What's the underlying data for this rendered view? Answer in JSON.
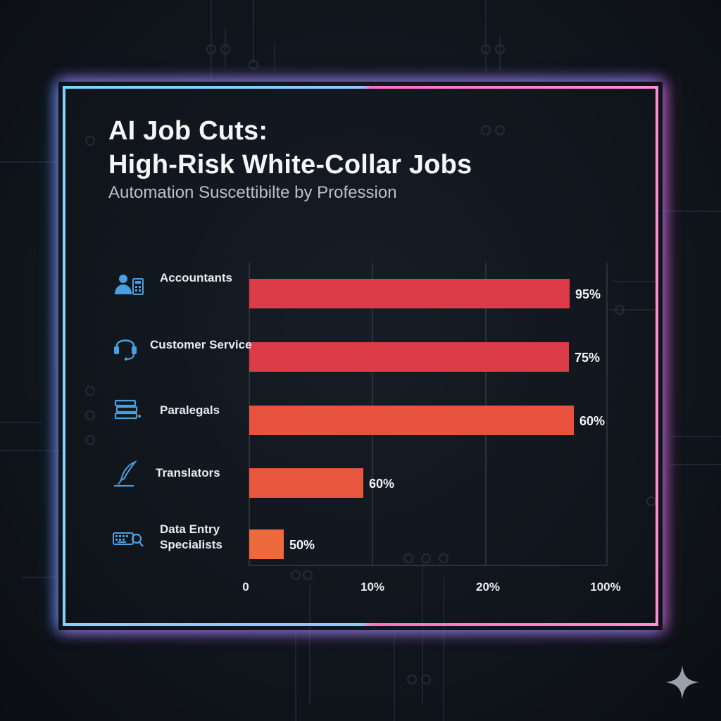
{
  "title_line1": "AI Job Cuts:",
  "title_line2": "High-Risk White-Collar Jobs",
  "subtitle": "Automation Suscettibilte by Profession",
  "colors": {
    "background": "#11161d",
    "frame_left": "#7fd3ff",
    "frame_right": "#ff6fc4",
    "icon": "#4a9fe0",
    "bar_colors": [
      "#dc3b48",
      "#dc3b48",
      "#e8523f",
      "#e8573e",
      "#ee6a3c"
    ]
  },
  "icons": [
    "accountant-icon",
    "headset-icon",
    "books-icon",
    "quill-icon",
    "keyboard-search-icon"
  ],
  "chart_data": {
    "type": "bar",
    "orientation": "horizontal",
    "categories": [
      "Accountants",
      "Customer Service",
      "Paralegals",
      "Translators",
      "Data Entry Specialists"
    ],
    "category_lines": [
      [
        "Accountants"
      ],
      [
        "Customer Service"
      ],
      [
        "Paralegals"
      ],
      [
        "Translators"
      ],
      [
        "Data Entry",
        "Specialists"
      ]
    ],
    "value_labels": [
      "95%",
      "75%",
      "60%",
      "60%",
      "50%"
    ],
    "tick_labels": [
      "0",
      "10%",
      "20%",
      "100%"
    ],
    "grid": true,
    "note": "Bar lengths drawn on a non-linear axis; printed value labels shown as-is."
  }
}
